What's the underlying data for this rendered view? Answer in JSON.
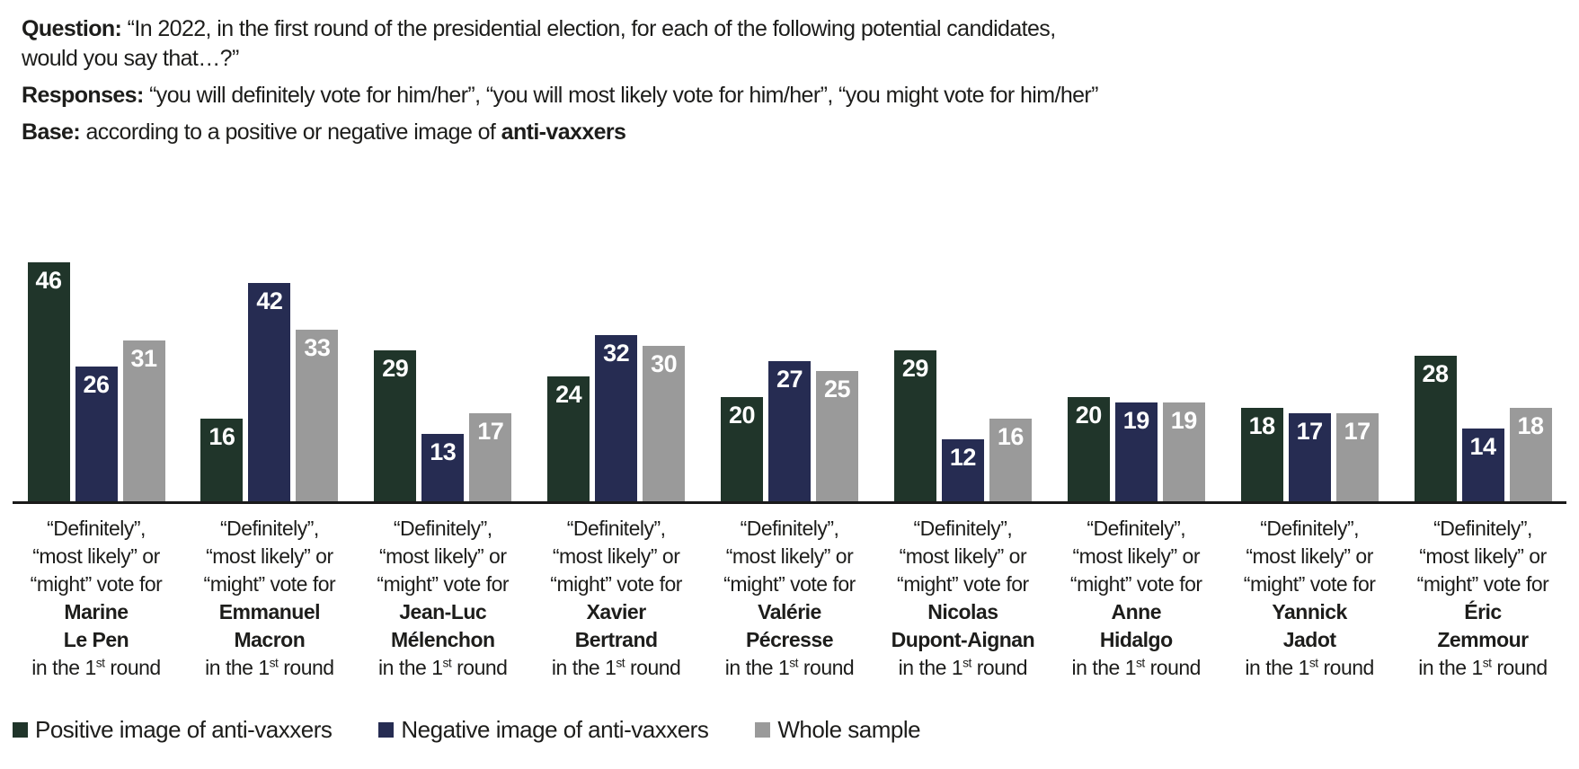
{
  "header": {
    "question_label": "Question:",
    "question_line1": "“In 2022, in the first round of the presidential election, for each of the following potential candidates,",
    "question_line2": "would you say that…?”",
    "responses_label": "Responses:",
    "responses_text": "“you will definitely vote for him/her”, “you will most likely vote for him/her”, “you might vote for him/her”",
    "base_label": "Base:",
    "base_text": "according to a positive or negative image of",
    "base_bold": "anti-vaxxers"
  },
  "chart_data": {
    "type": "bar",
    "unit": "percent",
    "title": "",
    "xlabel": "",
    "ylabel": "",
    "ylim": [
      0,
      50
    ],
    "grid": false,
    "y_axis_shown": false,
    "x_baseline_shown": true,
    "legend_position": "bottom-left",
    "categories": [
      "Marine Le Pen",
      "Emmanuel Macron",
      "Jean-Luc Mélenchon",
      "Xavier Bertrand",
      "Valérie Pécresse",
      "Nicolas Dupont-Aignan",
      "Anne Hidalgo",
      "Yannick Jadot",
      "Éric Zemmour"
    ],
    "series": [
      {
        "name": "Positive image of anti-vaxxers",
        "color": "#20352a",
        "values": [
          46,
          16,
          29,
          24,
          20,
          29,
          20,
          18,
          28
        ]
      },
      {
        "name": "Negative image of anti-vaxxers",
        "color": "#262c52",
        "values": [
          26,
          42,
          13,
          32,
          27,
          12,
          19,
          17,
          14
        ]
      },
      {
        "name": "Whole sample",
        "color": "#9a9a9a",
        "values": [
          31,
          33,
          17,
          30,
          25,
          16,
          19,
          17,
          18
        ]
      }
    ]
  },
  "category_labels": {
    "prefix_lines": [
      "“Definitely”,",
      "“most likely” or",
      "“might” vote for"
    ],
    "name_lines": [
      [
        "Marine",
        "Le Pen"
      ],
      [
        "Emmanuel",
        "Macron"
      ],
      [
        "Jean-Luc",
        "Mélenchon"
      ],
      [
        "Xavier",
        "Bertrand"
      ],
      [
        "Valérie",
        "Pécresse"
      ],
      [
        "Nicolas",
        "Dupont-Aignan"
      ],
      [
        "Anne",
        "Hidalgo"
      ],
      [
        "Yannick",
        "Jadot"
      ],
      [
        "Éric",
        "Zemmour"
      ]
    ],
    "suffix": {
      "pre": "in the 1",
      "sup": "st",
      "post": " round"
    }
  },
  "colors": {
    "positive": "#20352a",
    "negative": "#262c52",
    "whole_sample": "#9a9a9a",
    "text": "#1d1d1b",
    "bar_value_text": "#ffffff",
    "axis_line": "#1a1a1a"
  }
}
